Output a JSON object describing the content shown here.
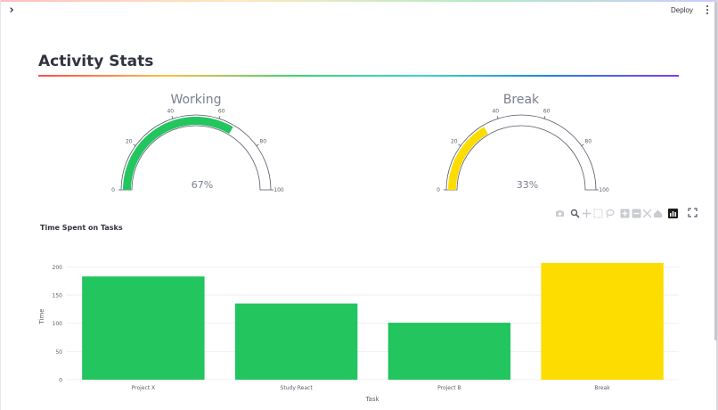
{
  "header": {
    "deploy_label": "Deploy"
  },
  "page": {
    "title": "Activity Stats"
  },
  "gauges": [
    {
      "name": "Working",
      "value": 67,
      "display": "67%",
      "max": 100,
      "ticks": [
        "0",
        "20",
        "40",
        "60",
        "80",
        "100"
      ],
      "color": "#22c55e"
    },
    {
      "name": "Break",
      "value": 33,
      "display": "33%",
      "max": 100,
      "ticks": [
        "0",
        "20",
        "40",
        "60",
        "80",
        "100"
      ],
      "color": "#fddc00"
    }
  ],
  "chart_data": {
    "type": "bar",
    "title": "Time Spent on Tasks",
    "xlabel": "Task",
    "ylabel": "Time",
    "categories": [
      "Project X",
      "Study React",
      "Project B",
      "Break"
    ],
    "values": [
      183,
      135,
      101,
      207
    ],
    "colors": [
      "#22c55e",
      "#22c55e",
      "#22c55e",
      "#fddc00"
    ],
    "yticks": [
      0,
      50,
      100,
      150,
      200
    ],
    "ylim": [
      0,
      218
    ],
    "grid": true
  },
  "modebar": {
    "icons": [
      "camera-icon",
      "zoom-icon",
      "pan-icon",
      "box-select-icon",
      "lasso-icon",
      "zoom-in-icon",
      "zoom-out-icon",
      "autoscale-icon",
      "reset-axes-icon",
      "plotly-logo-icon",
      "fullscreen-icon"
    ]
  },
  "colors": {
    "text": "#31333f",
    "gauge_text": "#7b7f8e",
    "axis_text": "#5c5f6b"
  }
}
